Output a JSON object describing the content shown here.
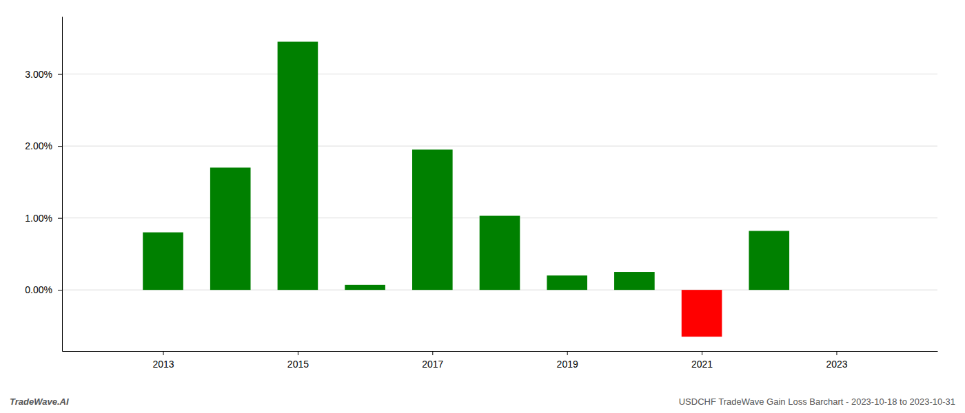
{
  "chart_data": {
    "type": "bar",
    "x": [
      2013,
      2014,
      2015,
      2016,
      2017,
      2018,
      2019,
      2020,
      2021,
      2022
    ],
    "values": [
      0.008,
      0.017,
      0.0345,
      0.0007,
      0.0195,
      0.0103,
      0.002,
      0.0025,
      -0.0065,
      0.0082
    ],
    "colors": [
      "#008000",
      "#008000",
      "#008000",
      "#008000",
      "#008000",
      "#008000",
      "#008000",
      "#008000",
      "#ff0000",
      "#008000"
    ],
    "xlim": [
      2011.5,
      2024.5
    ],
    "ylim": [
      -0.0085,
      0.038
    ],
    "xticks": [
      2013,
      2015,
      2017,
      2019,
      2021,
      2023
    ],
    "yticks": [
      {
        "value": 0.0,
        "label": "0.00%"
      },
      {
        "value": 0.01,
        "label": "1.00%"
      },
      {
        "value": 0.02,
        "label": "2.00%"
      },
      {
        "value": 0.03,
        "label": "3.00%"
      }
    ],
    "grid": true,
    "annotations": [
      {
        "text": "TradeWave.AI"
      },
      {
        "text": "USDCHF TradeWave Gain Loss Barchart - 2023-10-18 to 2023-10-31"
      }
    ]
  }
}
